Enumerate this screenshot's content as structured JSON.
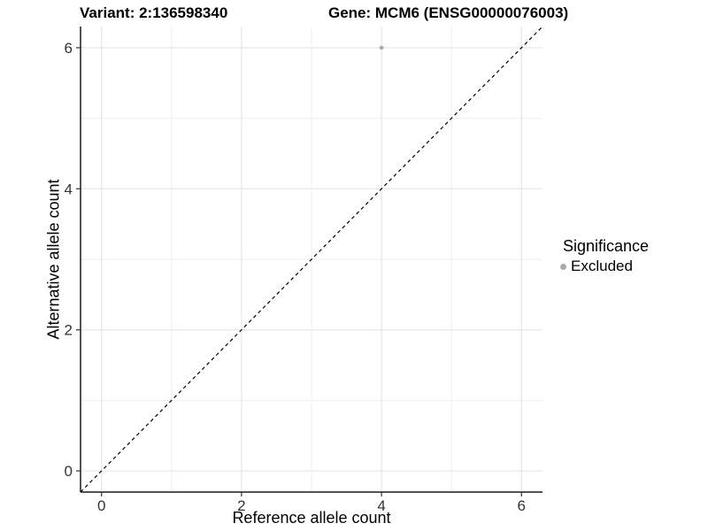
{
  "colors": {
    "background": "#ffffff",
    "grid_major": "#e2e2e2",
    "grid_minor": "#efefef",
    "axis_line": "#1a1a1a",
    "tick_mark": "#333333",
    "tick_label": "#333333",
    "text": "#000000",
    "point": "#aaaaaa",
    "reference_line": "#000000"
  },
  "chart_data": {
    "type": "scatter",
    "title_left": "Variant: 2:136598340",
    "title_right": "Gene: MCM6 (ENSG00000076003)",
    "xlabel": "Reference allele count",
    "ylabel": "Alternative allele count",
    "xlim": [
      -0.3,
      6.3
    ],
    "ylim": [
      -0.3,
      6.3
    ],
    "x_major_ticks": [
      0,
      2,
      4,
      6
    ],
    "x_minor_ticks": [
      1,
      3,
      5
    ],
    "y_major_ticks": [
      0,
      2,
      4,
      6
    ],
    "y_minor_ticks": [
      1,
      3,
      5
    ],
    "grid": "on",
    "legend_position": "right",
    "series": [
      {
        "name": "Excluded",
        "marker": "circle",
        "color": "#aaaaaa",
        "points": [
          [
            4,
            6
          ]
        ]
      }
    ],
    "reference_line": {
      "slope": 1,
      "intercept": 0,
      "style": "dashed",
      "color": "#000000"
    },
    "legend": {
      "title": "Significance",
      "entries": [
        {
          "label": "Excluded",
          "color": "#aaaaaa",
          "marker": "circle"
        }
      ]
    }
  }
}
